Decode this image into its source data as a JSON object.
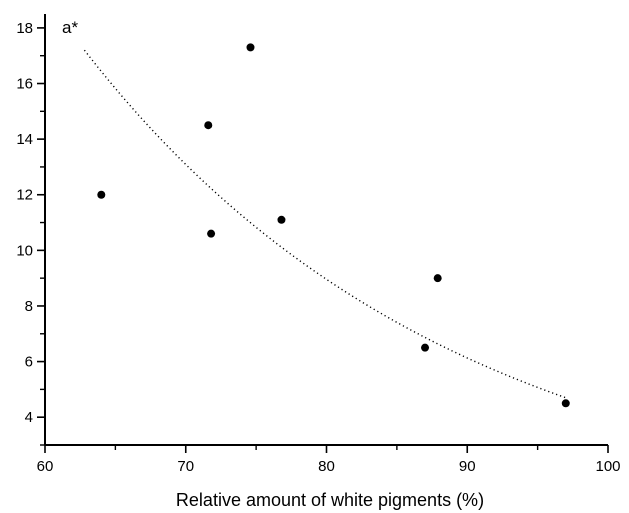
{
  "chart_data": {
    "type": "scatter",
    "title": "",
    "xlabel": "Relative amount of white pigments (%)",
    "ylabel": "a*",
    "xlim": [
      60,
      100
    ],
    "ylim": [
      3,
      18.5
    ],
    "x_ticks": [
      "60",
      "70",
      "80",
      "90",
      "100"
    ],
    "y_ticks": [
      "4",
      "6",
      "8",
      "10",
      "12",
      "14",
      "16",
      "18"
    ],
    "grid": false,
    "legend": "none",
    "series": [
      {
        "points": [
          {
            "x": 64.0,
            "y": 12.0
          },
          {
            "x": 71.6,
            "y": 14.5
          },
          {
            "x": 71.8,
            "y": 10.6
          },
          {
            "x": 74.6,
            "y": 17.3
          },
          {
            "x": 76.8,
            "y": 11.1
          },
          {
            "x": 87.0,
            "y": 6.5
          },
          {
            "x": 87.9,
            "y": 9.0
          },
          {
            "x": 97.0,
            "y": 4.5
          }
        ],
        "color": "#000000"
      }
    ],
    "trendline": {
      "style": "dotted",
      "color": "#000000",
      "x_range": [
        62.8,
        97.0
      ],
      "start_value": 17.2,
      "end_value": 4.7
    }
  }
}
